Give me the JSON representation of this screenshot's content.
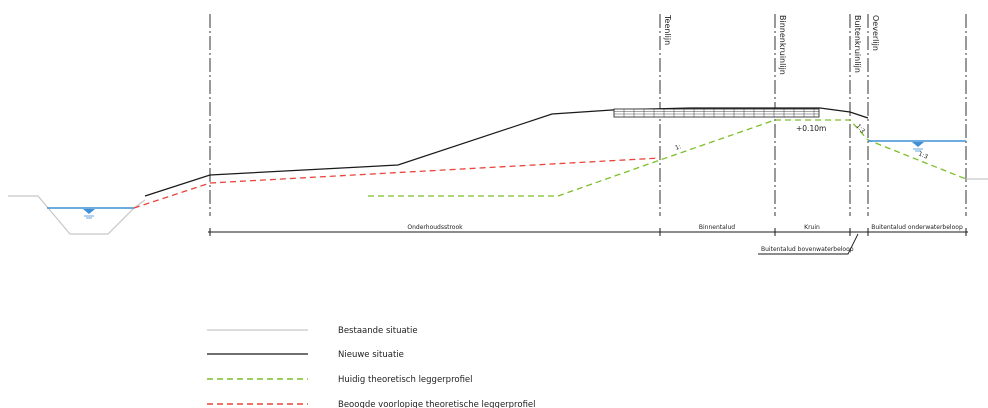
{
  "vertical_lines": {
    "teenlijn": "Teenlijn",
    "binnenkruinlijn": "Binnenkruinlijn",
    "buitenkruinlijn": "Buitenkruinlijn",
    "oeverlijn": "Oeverlijn"
  },
  "zones": {
    "onderhoudsstrook": "Onderhoudsstrook",
    "binnentalud": "Binnentalud",
    "kruin": "Kruin",
    "buitentalud_onderwaterbeloop": "Buitentalud onderwaterbeloop",
    "buitentalud_bovenwaterbeloop": "Buitentalud bovenwaterbeloop"
  },
  "annotations": {
    "crest_offset": "+0.10m",
    "slope_left": "1:",
    "slope_right": "1:3",
    "slope_water": "1:3"
  },
  "legend": {
    "items": [
      {
        "label": "Bestaande situatie"
      },
      {
        "label": "Nieuwe situatie"
      },
      {
        "label": "Huidig theoretisch leggerprofiel"
      },
      {
        "label": "Beoogde voorlopige theoretische leggerprofiel"
      }
    ]
  },
  "colors": {
    "existing": "#c8c8c8",
    "new": "#1a1a1a",
    "current_profile": "#7cbf2a",
    "target_profile": "#e8453c",
    "water": "#3d8fd6"
  }
}
